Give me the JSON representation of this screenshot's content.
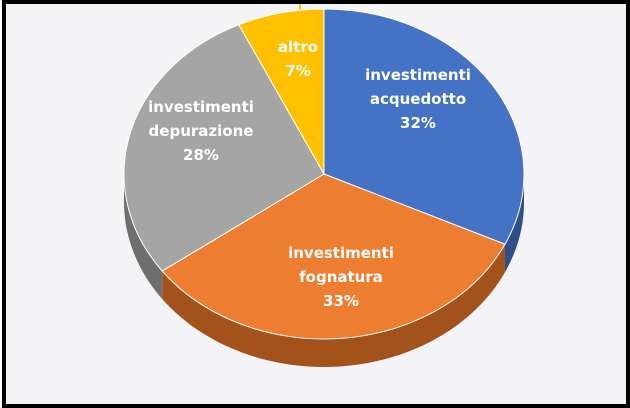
{
  "chart_data": {
    "type": "pie",
    "title": "",
    "slices": [
      {
        "label_lines": [
          "investimenti",
          "acquedotto"
        ],
        "pct_label": "32%",
        "value": 32,
        "color": "#4472c4",
        "side": "#2f4f8a"
      },
      {
        "label_lines": [
          "investimenti",
          "fognatura"
        ],
        "pct_label": "33%",
        "value": 33,
        "color": "#ed7d31",
        "side": "#a4521c"
      },
      {
        "label_lines": [
          "investimenti",
          "depurazione"
        ],
        "pct_label": "28%",
        "value": 28,
        "color": "#a5a5a5",
        "side": "#6e6e6e"
      },
      {
        "label_lines": [
          "altro"
        ],
        "pct_label": "7%",
        "value": 7,
        "color": "#ffc000",
        "side": "#b08400"
      }
    ]
  }
}
